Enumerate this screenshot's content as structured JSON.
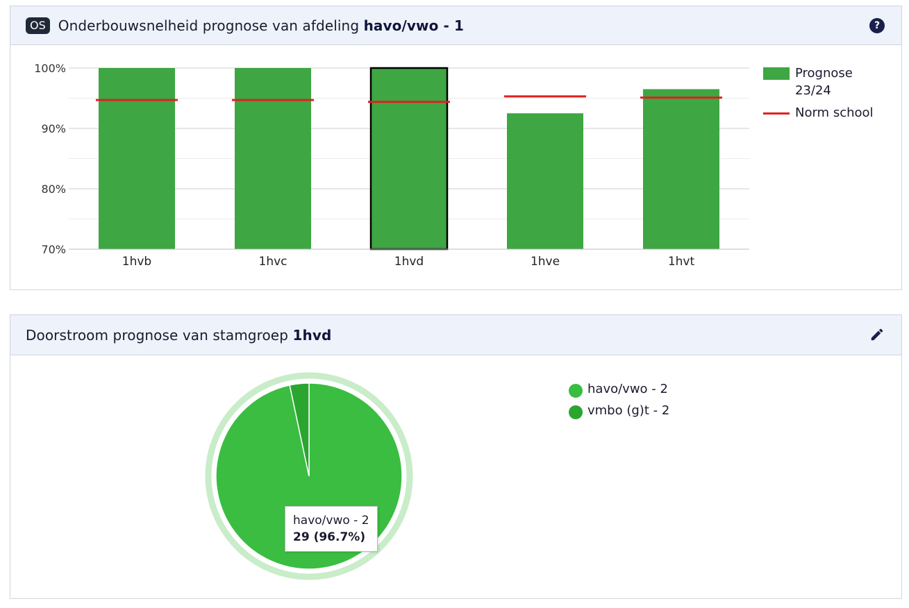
{
  "panel1": {
    "badge": "OS",
    "title_prefix": "Onderbouwsnelheid prognose van afdeling ",
    "title_strong": "havo/vwo - 1",
    "help_icon": "question-circle-icon"
  },
  "panel2": {
    "title_prefix": "Doorstroom prognose van stamgroep ",
    "title_strong": "1hvd",
    "edit_icon": "pencil-icon"
  },
  "colors": {
    "bar": "#3ea643",
    "norm": "#e0201f",
    "pie_main": "#3abd41",
    "pie_small": "#2aa52f",
    "pie_halo": "#c9ecc9"
  },
  "chart_data": [
    {
      "type": "bar",
      "categories": [
        "1hvb",
        "1hvc",
        "1hvd",
        "1hve",
        "1hvt"
      ],
      "series": [
        {
          "name": "Prognose 23/24",
          "values": [
            100,
            100,
            100,
            92.5,
            96.5
          ]
        },
        {
          "name": "Norm school",
          "values": [
            94.7,
            94.7,
            94.4,
            95.3,
            95.1
          ]
        }
      ],
      "ylim": [
        70,
        100
      ],
      "yticks": [
        "70%",
        "80%",
        "90%",
        "100%"
      ],
      "selected": "1hvd",
      "legend": [
        "Prognose",
        "23/24",
        "Norm school"
      ]
    },
    {
      "type": "pie",
      "slices": [
        {
          "label": "havo/vwo - 2",
          "value": 29,
          "percent": 96.7
        },
        {
          "label": "vmbo (g)t - 2",
          "value": 1,
          "percent": 3.3
        }
      ],
      "tooltip": {
        "label": "havo/vwo - 2",
        "value_text": "29 (96.7%)"
      }
    }
  ]
}
